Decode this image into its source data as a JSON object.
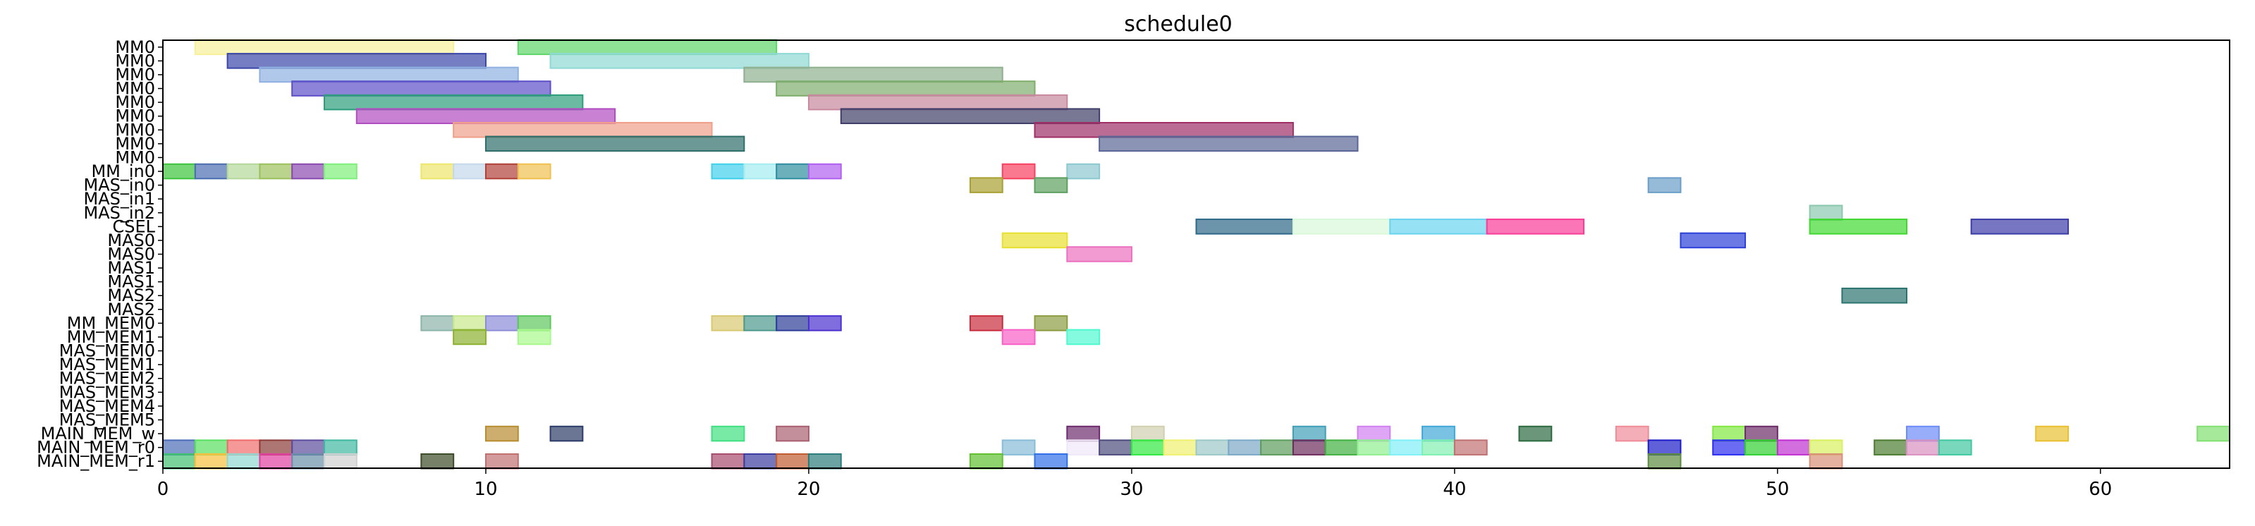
{
  "chart_data": {
    "type": "gantt",
    "title": "schedule0",
    "xlabel": "",
    "ylabel": "",
    "xlim": [
      0,
      64
    ],
    "x_ticks": [
      0,
      10,
      20,
      30,
      40,
      50,
      60
    ],
    "grid": false,
    "legend": "none",
    "rows": [
      "MM0",
      "MM0",
      "MM0",
      "MM0",
      "MM0",
      "MM0",
      "MM0",
      "MM0",
      "MM0",
      "MM_in0",
      "MAS_in0",
      "MAS_in1",
      "MAS_in2",
      "CSEL",
      "MAS0",
      "MAS0",
      "MAS1",
      "MAS1",
      "MAS2",
      "MAS2",
      "MM_MEM0",
      "MM_MEM1",
      "MAS_MEM0",
      "MAS_MEM1",
      "MAS_MEM2",
      "MAS_MEM3",
      "MAS_MEM4",
      "MAS_MEM5",
      "MAIN_MEM_w",
      "MAIN_MEM_r0",
      "MAIN_MEM_r1"
    ],
    "bars": [
      {
        "row": 0,
        "start": 1,
        "end": 9,
        "color": "#f7ef9a"
      },
      {
        "row": 0,
        "start": 11,
        "end": 19,
        "color": "#5ed66a"
      },
      {
        "row": 1,
        "start": 2,
        "end": 10,
        "color": "#3a47a8"
      },
      {
        "row": 1,
        "start": 12,
        "end": 20,
        "color": "#8fd8d4"
      },
      {
        "row": 2,
        "start": 3,
        "end": 11,
        "color": "#8fb0e0"
      },
      {
        "row": 2,
        "start": 18,
        "end": 26,
        "color": "#8fb08f"
      },
      {
        "row": 3,
        "start": 4,
        "end": 12,
        "color": "#5c4fc8"
      },
      {
        "row": 3,
        "start": 19,
        "end": 27,
        "color": "#7fae6c"
      },
      {
        "row": 4,
        "start": 5,
        "end": 13,
        "color": "#2c9e7c"
      },
      {
        "row": 4,
        "start": 20,
        "end": 28,
        "color": "#c8889e"
      },
      {
        "row": 5,
        "start": 6,
        "end": 14,
        "color": "#b04cc0"
      },
      {
        "row": 5,
        "start": 21,
        "end": 29,
        "color": "#3e3e68"
      },
      {
        "row": 6,
        "start": 9,
        "end": 17,
        "color": "#f0a08a"
      },
      {
        "row": 6,
        "start": 27,
        "end": 35,
        "color": "#9e2e66"
      },
      {
        "row": 7,
        "start": 10,
        "end": 18,
        "color": "#2e6e6a"
      },
      {
        "row": 7,
        "start": 29,
        "end": 37,
        "color": "#5a6696"
      },
      {
        "row": 9,
        "start": 0,
        "end": 1,
        "color": "#3cc43c"
      },
      {
        "row": 9,
        "start": 1,
        "end": 2,
        "color": "#4a6eb0"
      },
      {
        "row": 9,
        "start": 2,
        "end": 3,
        "color": "#b4d89a"
      },
      {
        "row": 9,
        "start": 3,
        "end": 4,
        "color": "#9cc05c"
      },
      {
        "row": 9,
        "start": 4,
        "end": 5,
        "color": "#8a4ab0"
      },
      {
        "row": 9,
        "start": 5,
        "end": 6,
        "color": "#7ef07a"
      },
      {
        "row": 9,
        "start": 8,
        "end": 9,
        "color": "#ece66a"
      },
      {
        "row": 9,
        "start": 9,
        "end": 10,
        "color": "#c4d8ec"
      },
      {
        "row": 9,
        "start": 10,
        "end": 11,
        "color": "#b04038"
      },
      {
        "row": 9,
        "start": 11,
        "end": 12,
        "color": "#f0c050"
      },
      {
        "row": 9,
        "start": 17,
        "end": 18,
        "color": "#40d0ec"
      },
      {
        "row": 9,
        "start": 18,
        "end": 19,
        "color": "#a4ecf0"
      },
      {
        "row": 9,
        "start": 19,
        "end": 20,
        "color": "#2e8ea0"
      },
      {
        "row": 9,
        "start": 20,
        "end": 21,
        "color": "#b060f0"
      },
      {
        "row": 9,
        "start": 26,
        "end": 27,
        "color": "#f84060"
      },
      {
        "row": 9,
        "start": 28,
        "end": 29,
        "color": "#8cc8d0"
      },
      {
        "row": 10,
        "start": 25,
        "end": 26,
        "color": "#a8a030"
      },
      {
        "row": 10,
        "start": 27,
        "end": 28,
        "color": "#5ca060"
      },
      {
        "row": 10,
        "start": 46,
        "end": 47,
        "color": "#6a9ec8"
      },
      {
        "row": 12,
        "start": 51,
        "end": 52,
        "color": "#8cc8b0"
      },
      {
        "row": 13,
        "start": 32,
        "end": 35,
        "color": "#2e6888"
      },
      {
        "row": 13,
        "start": 35,
        "end": 38,
        "color": "#d8f8d8"
      },
      {
        "row": 13,
        "start": 38,
        "end": 41,
        "color": "#6ad4f0"
      },
      {
        "row": 13,
        "start": 41,
        "end": 44,
        "color": "#f83c98"
      },
      {
        "row": 13,
        "start": 51,
        "end": 54,
        "color": "#40d830"
      },
      {
        "row": 13,
        "start": 56,
        "end": 59,
        "color": "#3c3ca8"
      },
      {
        "row": 14,
        "start": 26,
        "end": 28,
        "color": "#e8e030"
      },
      {
        "row": 14,
        "start": 47,
        "end": 49,
        "color": "#2c40d8"
      },
      {
        "row": 15,
        "start": 28,
        "end": 30,
        "color": "#ec70c0"
      },
      {
        "row": 18,
        "start": 52,
        "end": 54,
        "color": "#2c7470"
      },
      {
        "row": 20,
        "start": 8,
        "end": 9,
        "color": "#8cb4a8"
      },
      {
        "row": 20,
        "start": 9,
        "end": 10,
        "color": "#c8e88c"
      },
      {
        "row": 20,
        "start": 10,
        "end": 11,
        "color": "#8c8cd8"
      },
      {
        "row": 20,
        "start": 11,
        "end": 12,
        "color": "#5cc85c"
      },
      {
        "row": 20,
        "start": 17,
        "end": 18,
        "color": "#d8c870"
      },
      {
        "row": 20,
        "start": 18,
        "end": 19,
        "color": "#4c988c"
      },
      {
        "row": 20,
        "start": 19,
        "end": 20,
        "color": "#2c3c98"
      },
      {
        "row": 20,
        "start": 20,
        "end": 21,
        "color": "#4c30d0"
      },
      {
        "row": 20,
        "start": 25,
        "end": 26,
        "color": "#c82c3c"
      },
      {
        "row": 20,
        "start": 27,
        "end": 28,
        "color": "#8c9c40"
      },
      {
        "row": 21,
        "start": 9,
        "end": 10,
        "color": "#8cb030"
      },
      {
        "row": 21,
        "start": 11,
        "end": 12,
        "color": "#a8f88c"
      },
      {
        "row": 21,
        "start": 26,
        "end": 27,
        "color": "#f860c8"
      },
      {
        "row": 21,
        "start": 28,
        "end": 29,
        "color": "#50f8d0"
      },
      {
        "row": 28,
        "start": 10,
        "end": 11,
        "color": "#b88c30"
      },
      {
        "row": 28,
        "start": 12,
        "end": 13,
        "color": "#2c3c68"
      },
      {
        "row": 28,
        "start": 17,
        "end": 18,
        "color": "#40e080"
      },
      {
        "row": 28,
        "start": 19,
        "end": 20,
        "color": "#a86070"
      },
      {
        "row": 28,
        "start": 28,
        "end": 29,
        "color": "#6c2c6c"
      },
      {
        "row": 28,
        "start": 30,
        "end": 31,
        "color": "#d0d0b0"
      },
      {
        "row": 28,
        "start": 35,
        "end": 36,
        "color": "#40a0b8"
      },
      {
        "row": 28,
        "start": 37,
        "end": 38,
        "color": "#d080f0"
      },
      {
        "row": 28,
        "start": 39,
        "end": 40,
        "color": "#40a8d8"
      },
      {
        "row": 28,
        "start": 42,
        "end": 43,
        "color": "#2c6a40"
      },
      {
        "row": 28,
        "start": 45,
        "end": 46,
        "color": "#f08c98"
      },
      {
        "row": 28,
        "start": 48,
        "end": 49,
        "color": "#80e840"
      },
      {
        "row": 28,
        "start": 49,
        "end": 50,
        "color": "#6c2c68"
      },
      {
        "row": 28,
        "start": 54,
        "end": 55,
        "color": "#6c8cf8"
      },
      {
        "row": 28,
        "start": 58,
        "end": 59,
        "color": "#e8c030"
      },
      {
        "row": 28,
        "start": 63,
        "end": 64,
        "color": "#80e070"
      },
      {
        "row": 29,
        "start": 0,
        "end": 1,
        "color": "#4c6cb8"
      },
      {
        "row": 29,
        "start": 1,
        "end": 2,
        "color": "#58e060"
      },
      {
        "row": 29,
        "start": 2,
        "end": 3,
        "color": "#f06c6c"
      },
      {
        "row": 29,
        "start": 3,
        "end": 4,
        "color": "#8c3c38"
      },
      {
        "row": 29,
        "start": 4,
        "end": 5,
        "color": "#5c4c9c"
      },
      {
        "row": 29,
        "start": 5,
        "end": 6,
        "color": "#40b8a0"
      },
      {
        "row": 29,
        "start": 26,
        "end": 27,
        "color": "#88bcd8"
      },
      {
        "row": 29,
        "start": 28,
        "end": 29,
        "color": "#f0e8f8"
      },
      {
        "row": 29,
        "start": 29,
        "end": 30,
        "color": "#4c4c7c"
      },
      {
        "row": 29,
        "start": 30,
        "end": 31,
        "color": "#30e840"
      },
      {
        "row": 29,
        "start": 31,
        "end": 32,
        "color": "#f0f070"
      },
      {
        "row": 29,
        "start": 32,
        "end": 33,
        "color": "#9cc8c8"
      },
      {
        "row": 29,
        "start": 33,
        "end": 34,
        "color": "#7ca8c8"
      },
      {
        "row": 29,
        "start": 34,
        "end": 35,
        "color": "#5c9c5c"
      },
      {
        "row": 29,
        "start": 35,
        "end": 36,
        "color": "#6c2c5c"
      },
      {
        "row": 29,
        "start": 36,
        "end": 37,
        "color": "#40b040"
      },
      {
        "row": 29,
        "start": 37,
        "end": 38,
        "color": "#90f090"
      },
      {
        "row": 29,
        "start": 38,
        "end": 39,
        "color": "#80f0f8"
      },
      {
        "row": 29,
        "start": 39,
        "end": 40,
        "color": "#80f0b0"
      },
      {
        "row": 29,
        "start": 40,
        "end": 41,
        "color": "#c07070"
      },
      {
        "row": 29,
        "start": 46,
        "end": 47,
        "color": "#1c1cc8"
      },
      {
        "row": 29,
        "start": 48,
        "end": 49,
        "color": "#2c2cf0"
      },
      {
        "row": 29,
        "start": 49,
        "end": 50,
        "color": "#30d030"
      },
      {
        "row": 29,
        "start": 50,
        "end": 51,
        "color": "#c030d0"
      },
      {
        "row": 29,
        "start": 51,
        "end": 52,
        "color": "#d8f060"
      },
      {
        "row": 29,
        "start": 53,
        "end": 54,
        "color": "#4c7c30"
      },
      {
        "row": 29,
        "start": 54,
        "end": 55,
        "color": "#d890c0"
      },
      {
        "row": 29,
        "start": 55,
        "end": 56,
        "color": "#40c8a0"
      },
      {
        "row": 30,
        "start": 0,
        "end": 1,
        "color": "#40c070"
      },
      {
        "row": 30,
        "start": 1,
        "end": 2,
        "color": "#f8c040"
      },
      {
        "row": 30,
        "start": 2,
        "end": 3,
        "color": "#90d8d0"
      },
      {
        "row": 30,
        "start": 3,
        "end": 4,
        "color": "#e040a0"
      },
      {
        "row": 30,
        "start": 4,
        "end": 5,
        "color": "#6890a8"
      },
      {
        "row": 30,
        "start": 5,
        "end": 6,
        "color": "#d0d0d0"
      },
      {
        "row": 30,
        "start": 8,
        "end": 9,
        "color": "#3c4c28"
      },
      {
        "row": 30,
        "start": 10,
        "end": 11,
        "color": "#c07070"
      },
      {
        "row": 30,
        "start": 17,
        "end": 18,
        "color": "#a84c6c"
      },
      {
        "row": 30,
        "start": 18,
        "end": 19,
        "color": "#3c3ca0"
      },
      {
        "row": 30,
        "start": 19,
        "end": 20,
        "color": "#c05c30"
      },
      {
        "row": 30,
        "start": 20,
        "end": 21,
        "color": "#2c7c7c"
      },
      {
        "row": 30,
        "start": 25,
        "end": 26,
        "color": "#60c030"
      },
      {
        "row": 30,
        "start": 27,
        "end": 28,
        "color": "#3070e8"
      },
      {
        "row": 30,
        "start": 46,
        "end": 47,
        "color": "#5c8c40"
      },
      {
        "row": 30,
        "start": 51,
        "end": 52,
        "color": "#d89078"
      }
    ]
  }
}
